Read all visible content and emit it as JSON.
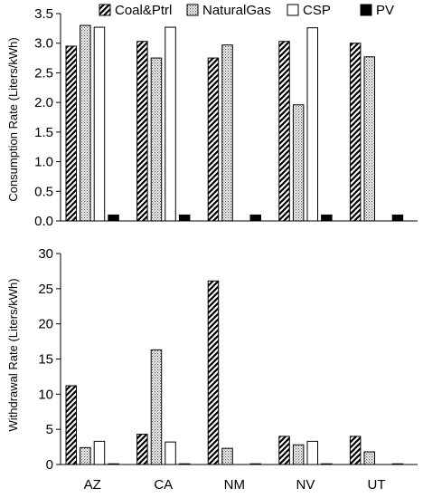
{
  "chart_data": [
    {
      "type": "bar",
      "ylabel": "Consumption Rate (Liters/kWh)",
      "ylim": [
        0,
        3.5
      ],
      "yticks": [
        0.0,
        0.5,
        1.0,
        1.5,
        2.0,
        2.5,
        3.0,
        3.5
      ],
      "ytick_labels": [
        "0.0",
        "0.5",
        "1.0",
        "1.5",
        "2.0",
        "2.5",
        "3.0",
        "3.5"
      ],
      "categories": [
        "AZ",
        "CA",
        "NM",
        "NV",
        "UT"
      ],
      "legend_placement": "top",
      "grid": false,
      "series": [
        {
          "name": "Coal&Ptrl",
          "fill": "diagonal-hatch",
          "values": [
            2.95,
            3.03,
            2.75,
            3.03,
            3.0
          ]
        },
        {
          "name": "NaturalGas",
          "fill": "dotted",
          "values": [
            3.3,
            2.75,
            2.97,
            1.96,
            2.77
          ]
        },
        {
          "name": "CSP",
          "fill": "white",
          "values": [
            3.27,
            3.27,
            null,
            3.26,
            null
          ]
        },
        {
          "name": "PV",
          "fill": "black",
          "values": [
            0.1,
            0.1,
            0.1,
            0.1,
            0.1
          ]
        }
      ]
    },
    {
      "type": "bar",
      "ylabel": "Withdrawal Rate (Liters/kWh)",
      "ylim": [
        0,
        30
      ],
      "yticks": [
        0,
        5,
        10,
        15,
        20,
        25,
        30
      ],
      "ytick_labels": [
        "0",
        "5",
        "10",
        "15",
        "20",
        "25",
        "30"
      ],
      "categories": [
        "AZ",
        "CA",
        "NM",
        "NV",
        "UT"
      ],
      "grid": false,
      "series": [
        {
          "name": "Coal&Ptrl",
          "fill": "diagonal-hatch",
          "values": [
            11.2,
            4.3,
            26.1,
            4.0,
            4.0
          ]
        },
        {
          "name": "NaturalGas",
          "fill": "dotted",
          "values": [
            2.4,
            16.3,
            2.3,
            2.8,
            1.8
          ]
        },
        {
          "name": "CSP",
          "fill": "white",
          "values": [
            3.3,
            3.2,
            null,
            3.3,
            null
          ]
        },
        {
          "name": "PV",
          "fill": "black",
          "values": [
            0.1,
            0.1,
            0.1,
            0.1,
            0.1
          ]
        }
      ]
    }
  ],
  "colors": {
    "axis": "#000000",
    "pv": "#000000",
    "csp": "#ffffff"
  }
}
